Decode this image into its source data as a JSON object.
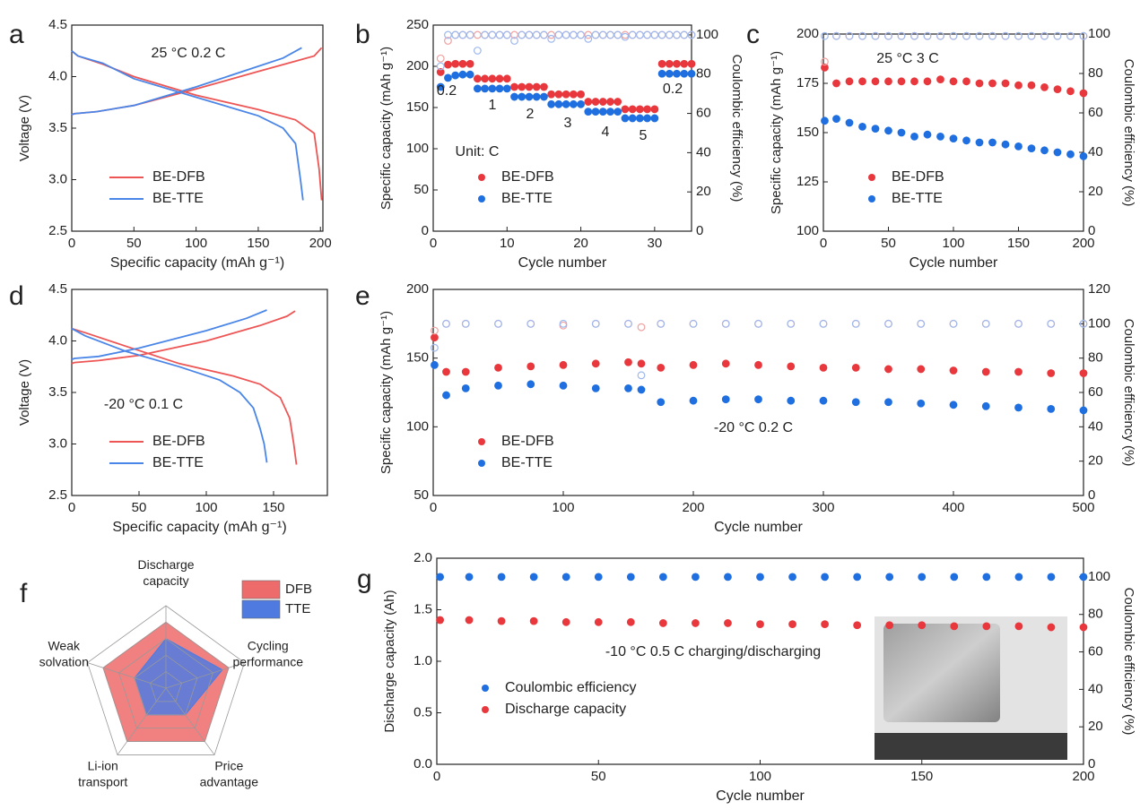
{
  "chart_data": [
    {
      "type": "line",
      "label": "a",
      "annotations": [
        "25 °C 0.2 C"
      ],
      "xlabel": "Specific capacity (mAh g⁻¹)",
      "ylabel": "Voltage (V)",
      "xlim": [
        0,
        202
      ],
      "ylim": [
        2.5,
        4.5
      ],
      "xticks": [
        0,
        50,
        100,
        150,
        200
      ],
      "yticks": [
        2.5,
        {
          "value": 3,
          "label": "3.0"
        },
        3.5,
        {
          "value": 4,
          "label": "4.0"
        },
        4.5
      ],
      "legend": "lower left",
      "series": [
        {
          "name": "BE-DFB",
          "color": "#ee5555",
          "x": [
            0,
            2,
            20,
            50,
            100,
            150,
            180,
            195,
            201,
            null,
            0,
            5,
            25,
            50,
            100,
            150,
            180,
            195,
            199,
            201
          ],
          "values": [
            3.63,
            3.64,
            3.66,
            3.72,
            3.88,
            4.05,
            4.15,
            4.2,
            4.28,
            null,
            4.25,
            4.2,
            4.12,
            4.0,
            3.82,
            3.68,
            3.58,
            3.45,
            3.1,
            2.8
          ]
        },
        {
          "name": "BE-TTE",
          "color": "#4a86e8",
          "x": [
            0,
            2,
            20,
            50,
            100,
            150,
            170,
            185,
            null,
            0,
            5,
            25,
            50,
            100,
            150,
            170,
            180,
            184,
            186
          ],
          "values": [
            3.63,
            3.64,
            3.66,
            3.72,
            3.9,
            4.1,
            4.18,
            4.28,
            null,
            4.25,
            4.2,
            4.13,
            3.98,
            3.8,
            3.62,
            3.5,
            3.35,
            3.0,
            2.8
          ]
        }
      ]
    },
    {
      "type": "scatter",
      "label": "b",
      "annotations": [
        "0.2",
        "1",
        "2",
        "3",
        "4",
        "5",
        "0.2",
        "Unit: C"
      ],
      "xlabel": "Cycle number",
      "ylabel": "Specific capacity (mAh g⁻¹)",
      "y2label": "Coulombic efficiency (%)",
      "xlim": [
        0,
        35
      ],
      "ylim": [
        0,
        250
      ],
      "y2lim": [
        0,
        105
      ],
      "xticks": [
        0,
        10,
        20,
        30
      ],
      "yticks": [
        0,
        50,
        100,
        150,
        200,
        250
      ],
      "y2ticks": [
        0,
        20,
        40,
        60,
        80,
        100
      ],
      "legend": "lower left",
      "x": [
        1,
        2,
        3,
        4,
        5,
        6,
        7,
        8,
        9,
        10,
        11,
        12,
        13,
        14,
        15,
        16,
        17,
        18,
        19,
        20,
        21,
        22,
        23,
        24,
        25,
        26,
        27,
        28,
        29,
        30,
        31,
        32,
        33,
        34,
        35
      ],
      "series": [
        {
          "name": "BE-DFB",
          "color": "#e8383d",
          "values": [
            193,
            202,
            203,
            203,
            203,
            185,
            185,
            185,
            185,
            185,
            175,
            175,
            175,
            175,
            175,
            166,
            166,
            166,
            166,
            166,
            157,
            157,
            157,
            157,
            157,
            148,
            148,
            148,
            148,
            148,
            203,
            203,
            203,
            203,
            203
          ]
        },
        {
          "name": "BE-TTE",
          "color": "#1f6fe0",
          "values": [
            175,
            186,
            189,
            190,
            190,
            173,
            173,
            173,
            173,
            173,
            163,
            163,
            163,
            163,
            163,
            154,
            154,
            154,
            154,
            154,
            145,
            145,
            145,
            145,
            145,
            137,
            137,
            137,
            137,
            137,
            191,
            191,
            191,
            191,
            191
          ]
        },
        {
          "color": "#f0a0a0",
          "axis": "y2",
          "hollow": true,
          "values": [
            88,
            97,
            100,
            100,
            100,
            100,
            100,
            100,
            100,
            100,
            100,
            100,
            100,
            100,
            100,
            100,
            100,
            100,
            100,
            100,
            100,
            100,
            100,
            100,
            100,
            100,
            100,
            100,
            100,
            100,
            100,
            100,
            100,
            100,
            100
          ]
        },
        {
          "color": "#9db8ee",
          "axis": "y2",
          "hollow": true,
          "values": [
            84,
            100,
            100,
            100,
            100,
            92,
            100,
            100,
            100,
            100,
            97,
            100,
            100,
            100,
            100,
            98,
            100,
            100,
            100,
            100,
            98,
            100,
            100,
            100,
            100,
            99,
            100,
            100,
            100,
            100,
            100,
            100,
            100,
            100,
            100
          ]
        }
      ]
    },
    {
      "type": "scatter",
      "label": "c",
      "annotations": [
        "25 °C 3 C"
      ],
      "xlabel": "Cycle number",
      "ylabel": "Specific capacity (mAh g⁻¹)",
      "y2label": "Coulombic efficiency (%)",
      "xlim": [
        0,
        200
      ],
      "ylim": [
        100,
        200
      ],
      "y2lim": [
        0,
        100
      ],
      "xticks": [
        0,
        50,
        100,
        150,
        200
      ],
      "yticks": [
        100,
        125,
        150,
        175,
        200
      ],
      "y2ticks": [
        0,
        20,
        40,
        60,
        80,
        100
      ],
      "legend": "lower left",
      "x": [
        1,
        10,
        20,
        30,
        40,
        50,
        60,
        70,
        80,
        90,
        100,
        110,
        120,
        130,
        140,
        150,
        160,
        170,
        180,
        190,
        200
      ],
      "series": [
        {
          "name": "BE-DFB",
          "color": "#e8383d",
          "values": [
            183,
            175,
            176,
            176,
            176,
            176,
            176,
            176,
            176,
            177,
            176,
            176,
            175,
            175,
            175,
            174,
            174,
            173,
            172,
            171,
            170
          ]
        },
        {
          "name": "BE-TTE",
          "color": "#1f6fe0",
          "values": [
            156,
            157,
            155,
            153,
            152,
            151,
            150,
            148,
            149,
            148,
            147,
            146,
            145,
            145,
            144,
            143,
            142,
            141,
            140,
            139,
            138
          ]
        },
        {
          "color": "#f0a0a0",
          "axis": "y2",
          "hollow": true,
          "values": [
            86,
            99,
            99,
            99,
            99,
            99,
            99,
            99,
            99,
            99,
            99,
            99,
            99,
            99,
            99,
            99,
            99,
            99,
            99,
            99,
            99
          ]
        },
        {
          "color": "#9db8ee",
          "axis": "y2",
          "hollow": true,
          "values": [
            99,
            99,
            99,
            99,
            99,
            99,
            99,
            99,
            99,
            99,
            99,
            99,
            99,
            99,
            99,
            99,
            99,
            99,
            99,
            99,
            99
          ]
        }
      ]
    },
    {
      "type": "line",
      "label": "d",
      "annotations": [
        "-20 °C 0.1 C"
      ],
      "xlabel": "Specific capacity (mAh g⁻¹)",
      "ylabel": "Voltage (V)",
      "xlim": [
        0,
        190
      ],
      "ylim": [
        2.5,
        4.5
      ],
      "xticks": [
        0,
        50,
        100,
        150
      ],
      "yticks": [
        2.5,
        {
          "value": 3,
          "label": "3.0"
        },
        3.5,
        {
          "value": 4,
          "label": "4.0"
        },
        4.5
      ],
      "legend": "lower left",
      "series": [
        {
          "name": "BE-DFB",
          "color": "#ee5555",
          "x": [
            0,
            2,
            20,
            50,
            100,
            140,
            160,
            166,
            null,
            0,
            10,
            40,
            80,
            120,
            140,
            155,
            162,
            165,
            167
          ],
          "values": [
            3.78,
            3.79,
            3.81,
            3.86,
            4.0,
            4.15,
            4.24,
            4.29,
            null,
            4.12,
            4.08,
            3.95,
            3.78,
            3.66,
            3.58,
            3.45,
            3.25,
            3.0,
            2.8
          ]
        },
        {
          "name": "BE-TTE",
          "color": "#4a86e8",
          "x": [
            0,
            2,
            20,
            50,
            100,
            130,
            145,
            null,
            0,
            10,
            40,
            80,
            110,
            125,
            135,
            140,
            143,
            145
          ],
          "values": [
            3.82,
            3.83,
            3.85,
            3.93,
            4.1,
            4.22,
            4.3,
            null,
            4.12,
            4.05,
            3.9,
            3.75,
            3.62,
            3.5,
            3.35,
            3.15,
            3.0,
            2.82
          ]
        }
      ]
    },
    {
      "type": "scatter",
      "label": "e",
      "annotations": [
        "-20 °C 0.2 C"
      ],
      "xlabel": "Cycle number",
      "ylabel": "Specific capacity (mAh g⁻¹)",
      "y2label": "Coulombic efficiency (%)",
      "xlim": [
        0,
        500
      ],
      "ylim": [
        50,
        200
      ],
      "y2lim": [
        0,
        120
      ],
      "xticks": [
        0,
        100,
        200,
        300,
        400,
        500
      ],
      "yticks": [
        50,
        100,
        150,
        200
      ],
      "y2ticks": [
        0,
        20,
        40,
        60,
        80,
        100,
        120
      ],
      "legend": "lower left",
      "x": [
        1,
        10,
        25,
        50,
        75,
        100,
        125,
        150,
        160,
        175,
        200,
        225,
        250,
        275,
        300,
        325,
        350,
        375,
        400,
        425,
        450,
        475,
        500
      ],
      "series": [
        {
          "name": "BE-DFB",
          "color": "#e8383d",
          "values": [
            165,
            140,
            140,
            143,
            144,
            145,
            146,
            147,
            146,
            143,
            145,
            146,
            145,
            144,
            143,
            143,
            142,
            142,
            141,
            140,
            140,
            139,
            139
          ]
        },
        {
          "name": "BE-TTE",
          "color": "#1f6fe0",
          "values": [
            145,
            123,
            128,
            130,
            131,
            130,
            128,
            128,
            127,
            118,
            119,
            120,
            120,
            119,
            119,
            118,
            118,
            117,
            116,
            115,
            114,
            113,
            112
          ]
        },
        {
          "color": "#f0a0a0",
          "axis": "y2",
          "hollow": true,
          "values": [
            96,
            100,
            100,
            100,
            100,
            99,
            100,
            100,
            98,
            100,
            100,
            100,
            100,
            100,
            100,
            100,
            100,
            100,
            100,
            100,
            100,
            100,
            100
          ]
        },
        {
          "color": "#9db8ee",
          "axis": "y2",
          "hollow": true,
          "values": [
            86,
            100,
            100,
            100,
            100,
            100,
            100,
            100,
            70,
            100,
            100,
            100,
            100,
            100,
            100,
            100,
            100,
            100,
            100,
            100,
            100,
            100,
            100
          ]
        }
      ]
    },
    {
      "type": "radar",
      "label": "f",
      "axes": [
        [
          "Discharge",
          "capacity"
        ],
        [
          "Cycling",
          "performance"
        ],
        [
          "Price",
          "advantage"
        ],
        [
          "Li-ion",
          "transport"
        ],
        [
          "Weak",
          "solvation"
        ]
      ],
      "rlim": [
        0,
        5
      ],
      "rticks": [
        1,
        2,
        3,
        4,
        5
      ],
      "series": [
        {
          "name": "DFB",
          "color": "#ee6b6b",
          "values": [
            4,
            4,
            4,
            4,
            4
          ]
        },
        {
          "name": "TTE",
          "color": "#4f7be0",
          "values": [
            3,
            3.6,
            2,
            2,
            2
          ]
        }
      ]
    },
    {
      "type": "scatter",
      "label": "g",
      "annotations": [
        "-10 °C 0.5 C charging/discharging"
      ],
      "xlabel": "Cycle number",
      "ylabel": "Discharge capacity (Ah)",
      "y2label": "Coulombic efficiency (%)",
      "xlim": [
        0,
        200
      ],
      "ylim": [
        0,
        2
      ],
      "y2lim": [
        0,
        110
      ],
      "xticks": [
        0,
        50,
        100,
        150,
        200
      ],
      "yticks": [
        {
          "value": 0,
          "label": "0.0"
        },
        0.5,
        {
          "value": 1,
          "label": "1.0"
        },
        1.5,
        {
          "value": 2,
          "label": "2.0"
        }
      ],
      "y2ticks": [
        0,
        20,
        40,
        60,
        80,
        100
      ],
      "legend": "center left",
      "x": [
        1,
        10,
        20,
        30,
        40,
        50,
        60,
        70,
        80,
        90,
        100,
        110,
        120,
        130,
        140,
        150,
        160,
        170,
        180,
        190,
        200
      ],
      "series": [
        {
          "name": "Coulombic efficiency",
          "color": "#1f6fe0",
          "axis": "y2",
          "values": [
            100,
            100,
            100,
            100,
            100,
            100,
            100,
            100,
            100,
            100,
            100,
            100,
            100,
            100,
            100,
            100,
            100,
            100,
            100,
            100,
            100
          ]
        },
        {
          "name": "Discharge capacity",
          "color": "#e8383d",
          "values": [
            1.4,
            1.4,
            1.39,
            1.39,
            1.38,
            1.38,
            1.38,
            1.37,
            1.37,
            1.37,
            1.36,
            1.36,
            1.36,
            1.35,
            1.35,
            1.35,
            1.34,
            1.34,
            1.34,
            1.33,
            1.33
          ]
        }
      ]
    }
  ]
}
